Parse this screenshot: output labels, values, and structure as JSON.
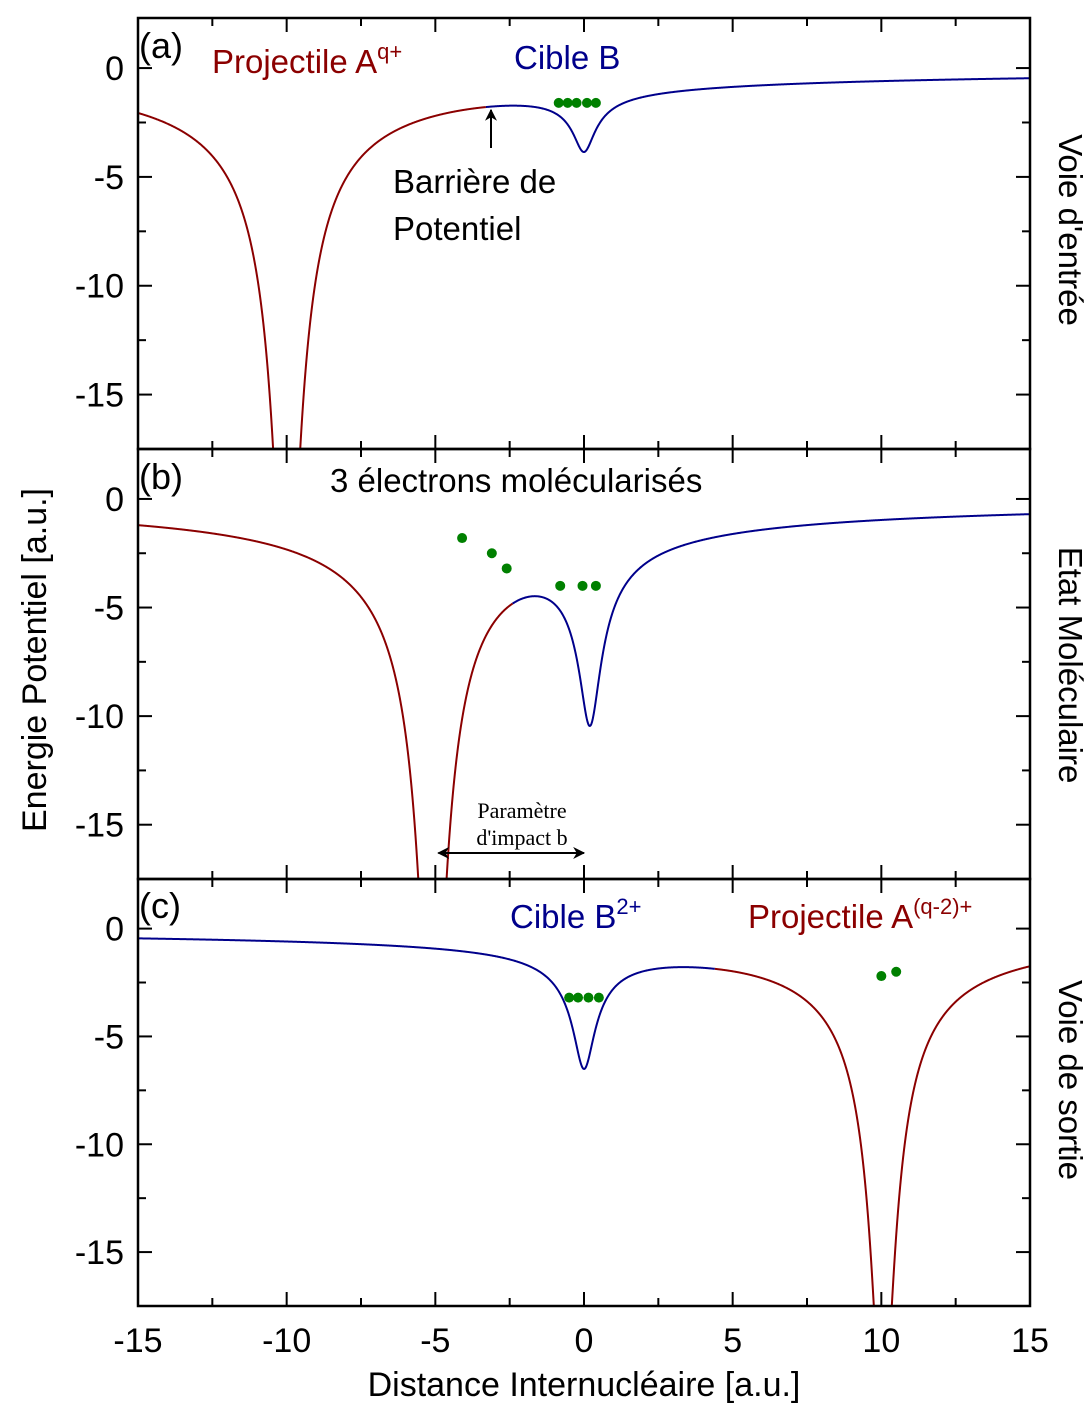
{
  "chart_data": {
    "type": "line",
    "shared_x_axis": {
      "label": "Distance Internucléaire [a.u.]",
      "range": [
        -15,
        15
      ],
      "ticks": [
        -15,
        -10,
        -5,
        0,
        5,
        10,
        15
      ],
      "tick_labels": [
        "-15",
        "-10",
        "-5",
        "0",
        "5",
        "10",
        "15"
      ]
    },
    "shared_y_axis": {
      "label": "Energie Potentiel [a.u.]",
      "range": [
        -17.5,
        2.3
      ],
      "ticks": [
        0,
        -5,
        -10,
        -15
      ],
      "tick_labels": [
        "0",
        "-5",
        "-10",
        "-15"
      ]
    },
    "colors": {
      "projectile": "#8b0000",
      "target": "#00008b",
      "electron": "#008000"
    },
    "panels": [
      {
        "letter": "(a)",
        "side_label": "Voie d'entrée",
        "projectile_label": "Projectile A",
        "projectile_sup": "q+",
        "target_label": "Cible B",
        "barrier_label_line1": "Barrière de",
        "barrier_label_line2": "Potentiel",
        "projectile_center": -10.0,
        "projectile_charge": 10.0,
        "target_center": 0.0,
        "target_charge": 1.0,
        "curve_junction_x": -3.3,
        "barrier": {
          "x": -3.2,
          "y": -1.1
        },
        "electrons": [
          [
            -0.85,
            -1.6
          ],
          [
            -0.55,
            -1.6
          ],
          [
            -0.25,
            -1.6
          ],
          [
            0.1,
            -1.6
          ],
          [
            0.4,
            -1.6
          ]
        ]
      },
      {
        "letter": "(b)",
        "side_label": "Etat Moléculaire",
        "title_label": "3 électrons molécularisés",
        "impact_label_line1": "Paramètre",
        "impact_label_line2": "d'impact b",
        "projectile_center": -5.1,
        "projectile_charge": 10.0,
        "target_center": 0.2,
        "target_charge": 3.0,
        "curve_junction_x": -2.4,
        "impact_arrow": {
          "x_start": -5.1,
          "x_end": 0.2,
          "y": -16.3
        },
        "electrons": [
          [
            -4.1,
            -1.8
          ],
          [
            -3.1,
            -2.5
          ],
          [
            -2.6,
            -3.2
          ],
          [
            -0.8,
            -4.0
          ],
          [
            -0.05,
            -4.0
          ],
          [
            0.4,
            -4.0
          ]
        ]
      },
      {
        "letter": "(c)",
        "side_label": "Voie de sortie",
        "projectile_label": "Projectile A",
        "projectile_sup": "(q-2)+",
        "target_label": "Cible B",
        "target_sup": "2+",
        "projectile_center": 10.05,
        "projectile_charge": 8.0,
        "target_center": 0.0,
        "target_charge": 2.0,
        "curve_junction_x": 4.4,
        "electrons": [
          [
            -0.5,
            -3.2
          ],
          [
            -0.2,
            -3.2
          ],
          [
            0.15,
            -3.2
          ],
          [
            0.5,
            -3.2
          ],
          [
            10.0,
            -2.2
          ],
          [
            10.5,
            -2.0
          ]
        ]
      }
    ]
  }
}
